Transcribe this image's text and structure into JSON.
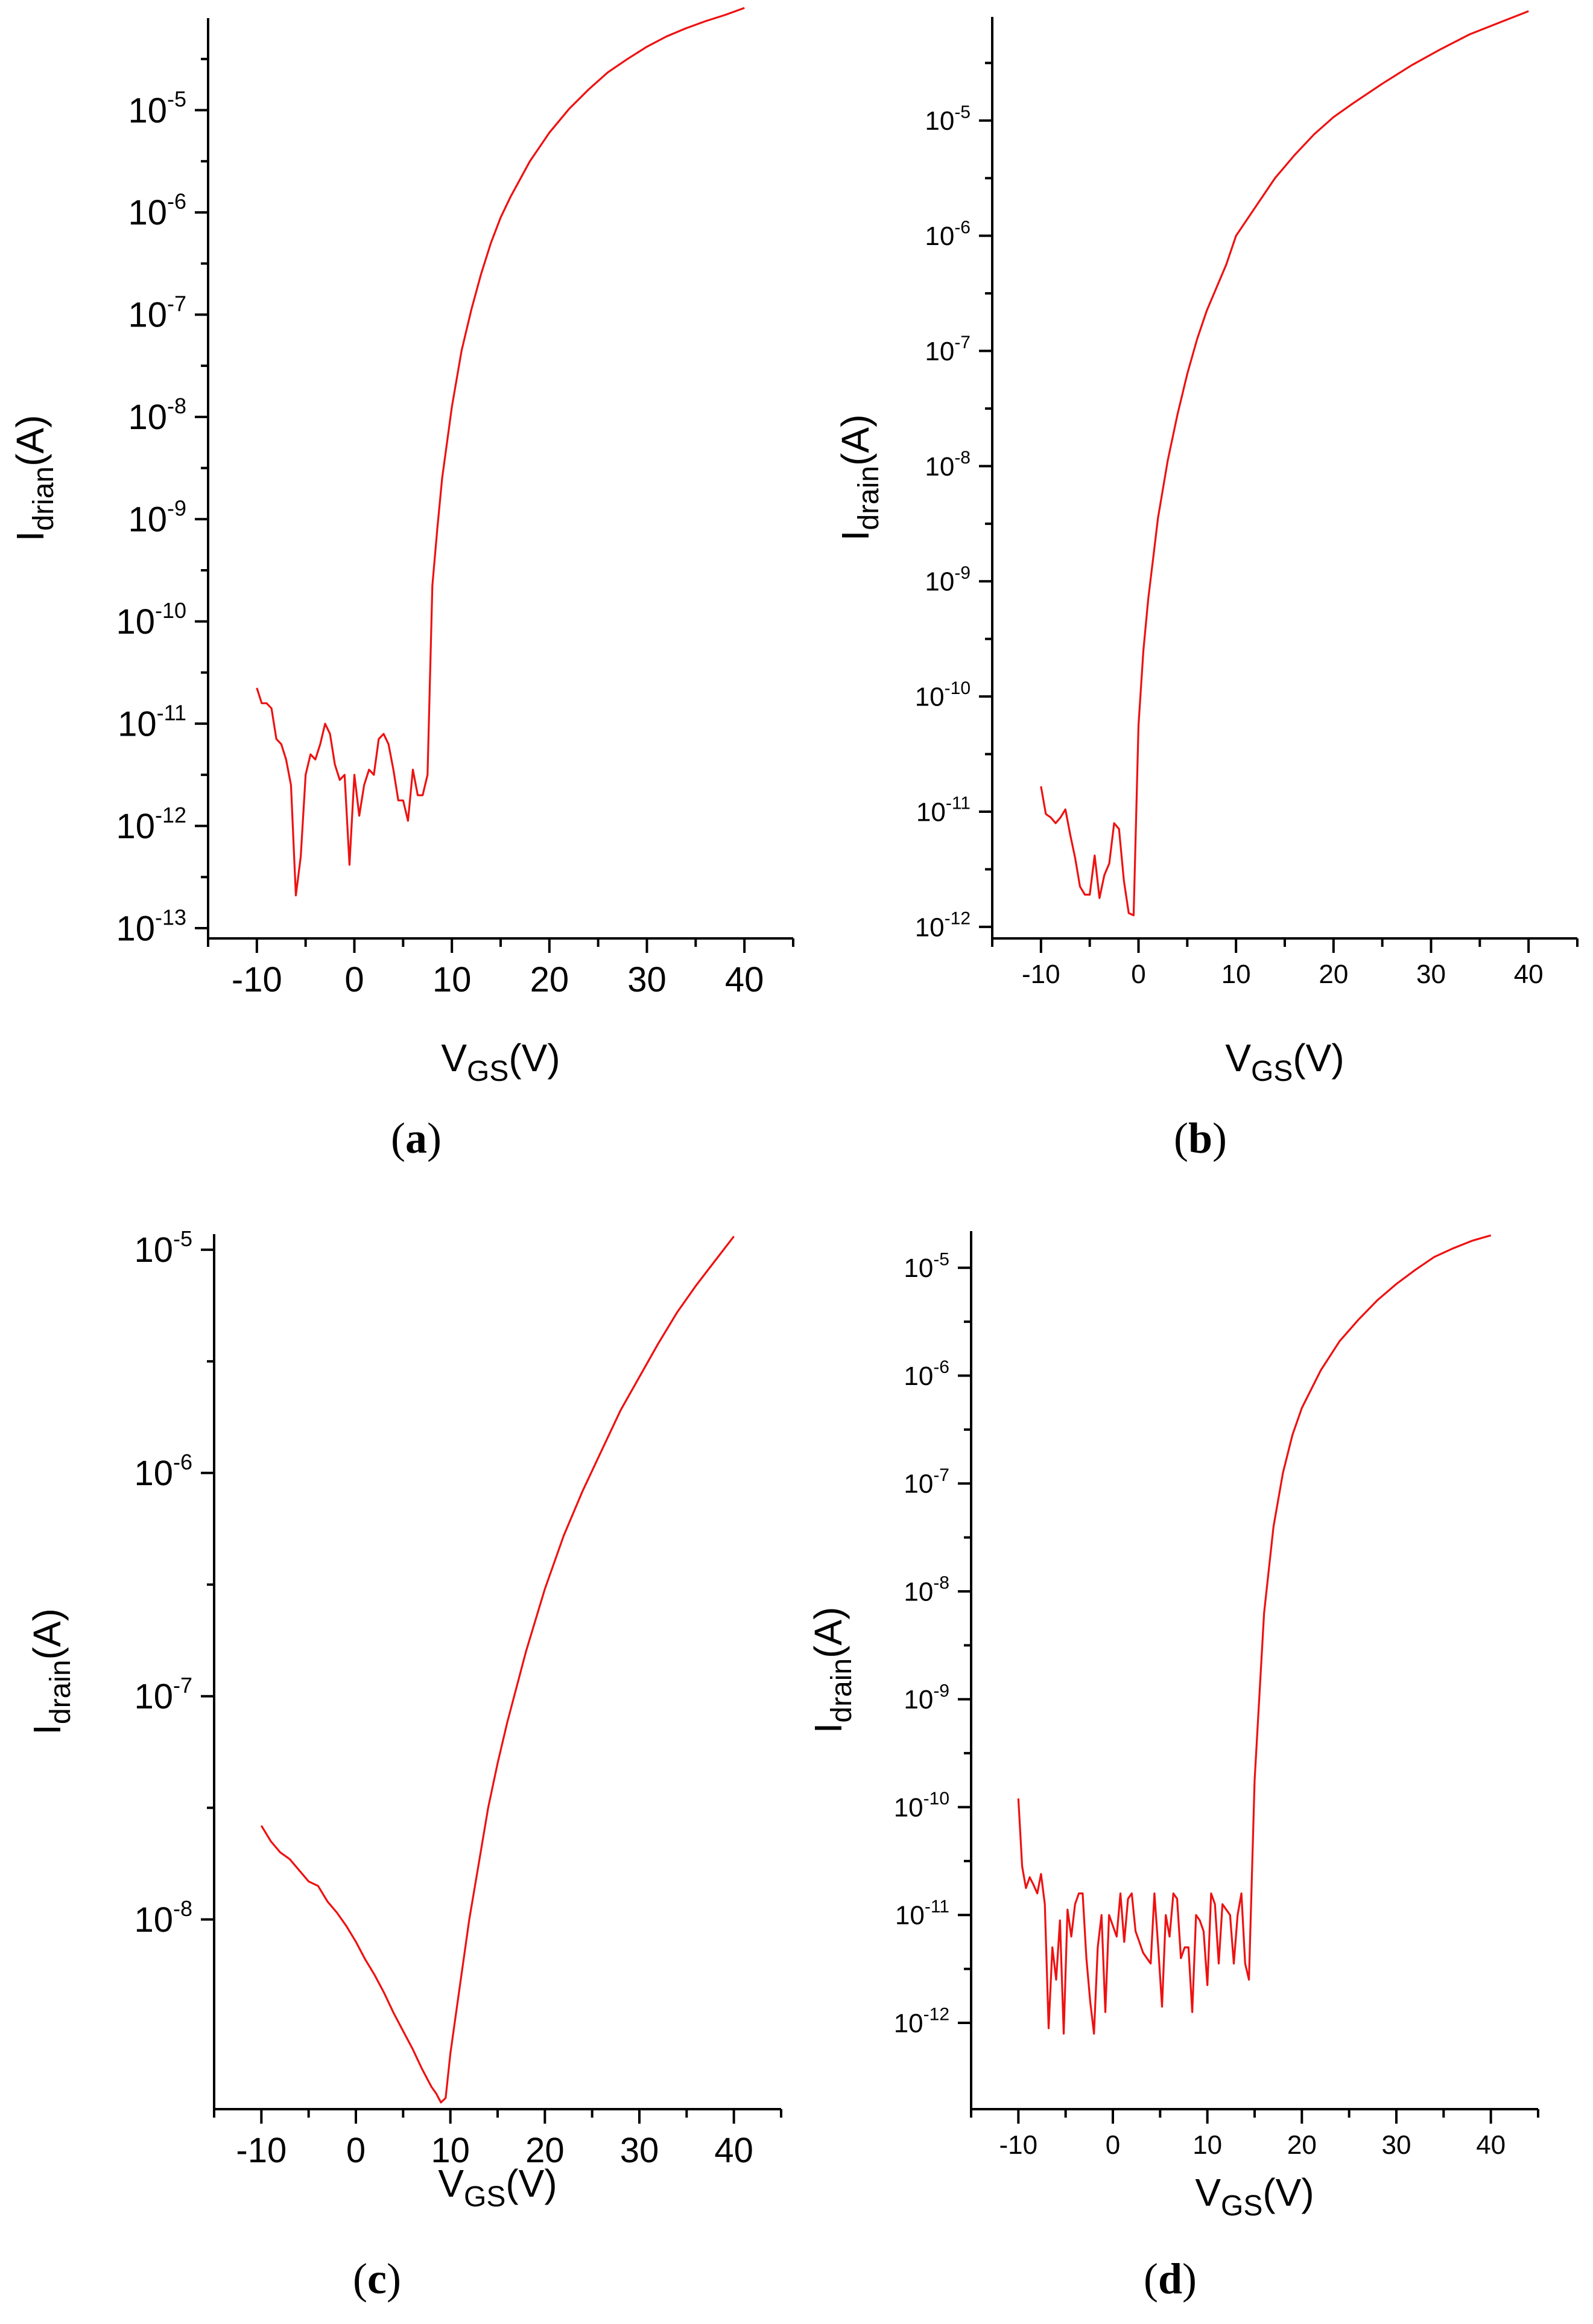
{
  "chart_data": [
    {
      "type": "line",
      "panel": "a",
      "panel_label": "a",
      "xlabel_main": "V",
      "xlabel_sub": "GS",
      "xlabel_tail": "(V)",
      "ylabel_main": "I",
      "ylabel_sub": "drian",
      "ylabel_tail": "(A)",
      "yscale": "log",
      "xlim": [
        -15,
        45
      ],
      "ylim_exp": [
        -13.1,
        -4.1
      ],
      "xticks": [
        -10,
        0,
        10,
        20,
        30,
        40
      ],
      "xtick_labels": [
        "-10",
        "0",
        "10",
        "20",
        "30",
        "40"
      ],
      "ytick_exps": [
        -13,
        -12,
        -11,
        -10,
        -9,
        -8,
        -7,
        -6,
        -5
      ],
      "ytick_base": "10",
      "ytick_exp_labels": [
        "-13",
        "-12",
        "-11",
        "-10",
        "-9",
        "-8",
        "-7",
        "-6",
        "-5"
      ],
      "series": [
        {
          "name": "I_drian",
          "color": "#ee1111",
          "x": [
            -10,
            -9.5,
            -9,
            -8.5,
            -8,
            -7.5,
            -7,
            -6.5,
            -6,
            -5.5,
            -5,
            -4.5,
            -4,
            -3.5,
            -3,
            -2.5,
            -2,
            -1.5,
            -1,
            -0.5,
            0,
            0.5,
            1,
            1.5,
            2,
            2.5,
            3,
            3.5,
            4,
            4.5,
            5,
            5.5,
            6,
            6.5,
            7,
            7.5,
            8,
            8.5,
            9,
            10,
            11,
            12,
            13,
            14,
            15,
            16,
            18,
            20,
            22,
            24,
            26,
            28,
            30,
            32,
            34,
            36,
            38,
            40
          ],
          "y_log10": [
            -10.65,
            -10.8,
            -10.8,
            -10.85,
            -11.15,
            -11.2,
            -11.35,
            -11.6,
            -12.68,
            -12.3,
            -11.5,
            -11.3,
            -11.35,
            -11.2,
            -11.0,
            -11.1,
            -11.4,
            -11.55,
            -11.5,
            -12.38,
            -11.5,
            -11.9,
            -11.6,
            -11.45,
            -11.5,
            -11.15,
            -11.1,
            -11.2,
            -11.45,
            -11.75,
            -11.75,
            -11.95,
            -11.45,
            -11.7,
            -11.7,
            -11.5,
            -9.65,
            -9.1,
            -8.6,
            -7.9,
            -7.35,
            -6.95,
            -6.6,
            -6.3,
            -6.05,
            -5.85,
            -5.5,
            -5.22,
            -4.99,
            -4.8,
            -4.63,
            -4.5,
            -4.38,
            -4.28,
            -4.2,
            -4.13,
            -4.07,
            -4.0
          ]
        }
      ]
    },
    {
      "type": "line",
      "panel": "b",
      "panel_label": "b",
      "xlabel_main": "V",
      "xlabel_sub": "GS",
      "xlabel_tail": "(V)",
      "ylabel_main": "I",
      "ylabel_sub": "drain",
      "ylabel_tail": "(A)",
      "yscale": "log",
      "xlim": [
        -15,
        45
      ],
      "ylim_exp": [
        -12.1,
        -4.1
      ],
      "xticks": [
        -10,
        0,
        10,
        20,
        30,
        40
      ],
      "xtick_labels": [
        "-10",
        "0",
        "10",
        "20",
        "30",
        "40"
      ],
      "ytick_exps": [
        -12,
        -11,
        -10,
        -9,
        -8,
        -7,
        -6,
        -5
      ],
      "ytick_base": "10",
      "ytick_exp_labels": [
        "-12",
        "-11",
        "-10",
        "-9",
        "-8",
        "-7",
        "-6",
        "-5"
      ],
      "series": [
        {
          "name": "I_drain",
          "color": "#ee1111",
          "x": [
            -10,
            -9.5,
            -9,
            -8.5,
            -8,
            -7.5,
            -7,
            -6.5,
            -6,
            -5.5,
            -5,
            -4.5,
            -4,
            -3.5,
            -3,
            -2.5,
            -2,
            -1.5,
            -1,
            -0.5,
            0,
            0.5,
            1,
            1.5,
            2,
            2.5,
            3,
            4,
            5,
            6,
            7,
            8,
            9,
            10,
            12,
            14,
            16,
            18,
            20,
            22,
            25,
            28,
            31,
            34,
            37,
            40
          ],
          "y_log10": [
            -10.78,
            -11.02,
            -11.05,
            -11.1,
            -11.05,
            -10.98,
            -11.2,
            -11.4,
            -11.65,
            -11.72,
            -11.72,
            -11.38,
            -11.75,
            -11.55,
            -11.45,
            -11.1,
            -11.15,
            -11.6,
            -11.88,
            -11.9,
            -10.25,
            -9.6,
            -9.15,
            -8.8,
            -8.45,
            -8.2,
            -7.95,
            -7.55,
            -7.2,
            -6.9,
            -6.65,
            -6.45,
            -6.25,
            -6.0,
            -5.75,
            -5.5,
            -5.3,
            -5.12,
            -4.97,
            -4.85,
            -4.68,
            -4.52,
            -4.38,
            -4.25,
            -4.15,
            -4.05
          ]
        }
      ]
    },
    {
      "type": "line",
      "panel": "c",
      "panel_label": "c",
      "xlabel_main": "V",
      "xlabel_sub": "GS",
      "xlabel_tail": "(V)",
      "ylabel_main": "I",
      "ylabel_sub": "drain",
      "ylabel_tail": "(A)",
      "yscale": "log",
      "xlim": [
        -15,
        45
      ],
      "ylim_exp": [
        -8.85,
        -4.93
      ],
      "xticks": [
        -10,
        0,
        10,
        20,
        30,
        40
      ],
      "xtick_labels": [
        "-10",
        "0",
        "10",
        "20",
        "30",
        "40"
      ],
      "ytick_exps": [
        -8,
        -7,
        -6,
        -5
      ],
      "ytick_base": "10",
      "ytick_exp_labels": [
        "-8",
        "-7",
        "-6",
        "-5"
      ],
      "series": [
        {
          "name": "I_drain",
          "color": "#ee1111",
          "x": [
            -10,
            -9,
            -8,
            -7,
            -6,
            -5,
            -4,
            -3,
            -2,
            -1,
            0,
            1,
            2,
            3,
            4,
            5,
            6,
            7,
            8,
            8.5,
            9,
            9.5,
            10,
            11,
            12,
            13,
            14,
            15,
            16,
            18,
            20,
            22,
            24,
            26,
            28,
            30,
            32,
            34,
            36,
            38,
            40
          ],
          "y_log10": [
            -7.58,
            -7.65,
            -7.7,
            -7.73,
            -7.78,
            -7.83,
            -7.85,
            -7.92,
            -7.97,
            -8.03,
            -8.1,
            -8.18,
            -8.25,
            -8.33,
            -8.42,
            -8.5,
            -8.58,
            -8.67,
            -8.75,
            -8.78,
            -8.82,
            -8.8,
            -8.6,
            -8.3,
            -8.0,
            -7.75,
            -7.5,
            -7.3,
            -7.12,
            -6.8,
            -6.52,
            -6.28,
            -6.08,
            -5.9,
            -5.72,
            -5.57,
            -5.42,
            -5.28,
            -5.16,
            -5.05,
            -4.94
          ]
        }
      ]
    },
    {
      "type": "line",
      "panel": "d",
      "panel_label": "d",
      "xlabel_main": "V",
      "xlabel_sub": "GS",
      "xlabel_tail": "(V)",
      "ylabel_main": "I",
      "ylabel_sub": "drain",
      "ylabel_tail": "(A)",
      "yscale": "log",
      "xlim": [
        -15,
        45
      ],
      "ylim_exp": [
        -12.8,
        -4.66
      ],
      "xticks": [
        -10,
        0,
        10,
        20,
        30,
        40
      ],
      "xtick_labels": [
        "-10",
        "0",
        "10",
        "20",
        "30",
        "40"
      ],
      "ytick_exps": [
        -12,
        -11,
        -10,
        -9,
        -8,
        -7,
        -6,
        -5
      ],
      "ytick_base": "10",
      "ytick_exp_labels": [
        "-12",
        "-11",
        "-10",
        "-9",
        "-8",
        "-7",
        "-6",
        "-5"
      ],
      "series": [
        {
          "name": "I_drain",
          "color": "#ee1111",
          "x": [
            -10,
            -9.6,
            -9.2,
            -8.8,
            -8.4,
            -8.0,
            -7.6,
            -7.2,
            -6.8,
            -6.4,
            -6.0,
            -5.6,
            -5.2,
            -4.8,
            -4.4,
            -4.0,
            -3.6,
            -3.2,
            -2.8,
            -2.4,
            -2.0,
            -1.6,
            -1.2,
            -0.8,
            -0.4,
            0.0,
            0.4,
            0.8,
            1.2,
            1.6,
            2.0,
            2.4,
            2.8,
            3.2,
            3.6,
            4.0,
            4.4,
            4.8,
            5.2,
            5.6,
            6.0,
            6.4,
            6.8,
            7.2,
            7.6,
            8.0,
            8.4,
            8.8,
            9.2,
            9.6,
            10.0,
            10.4,
            10.8,
            11.2,
            11.6,
            12.0,
            12.4,
            12.8,
            13.2,
            13.6,
            14.0,
            14.4,
            15,
            16,
            17,
            18,
            19,
            20,
            22,
            24,
            26,
            28,
            30,
            32,
            34,
            36,
            38,
            40
          ],
          "y_log10": [
            -9.92,
            -10.55,
            -10.75,
            -10.65,
            -10.72,
            -10.8,
            -10.62,
            -10.9,
            -12.05,
            -11.3,
            -11.6,
            -11.05,
            -12.1,
            -10.95,
            -11.2,
            -10.9,
            -10.8,
            -10.8,
            -11.4,
            -11.8,
            -12.1,
            -11.3,
            -11.0,
            -11.9,
            -11.0,
            -11.1,
            -11.2,
            -10.8,
            -11.25,
            -10.85,
            -10.8,
            -11.15,
            -11.25,
            -11.35,
            -11.4,
            -11.45,
            -10.8,
            -11.3,
            -11.85,
            -11.0,
            -11.2,
            -10.8,
            -10.85,
            -11.4,
            -11.3,
            -11.3,
            -11.9,
            -11.0,
            -11.05,
            -11.15,
            -11.65,
            -10.8,
            -10.9,
            -11.45,
            -10.9,
            -10.95,
            -11.0,
            -11.45,
            -11.0,
            -10.8,
            -11.45,
            -11.6,
            -9.75,
            -8.2,
            -7.4,
            -6.9,
            -6.55,
            -6.3,
            -5.95,
            -5.68,
            -5.48,
            -5.3,
            -5.15,
            -5.02,
            -4.9,
            -4.82,
            -4.75,
            -4.7
          ]
        }
      ]
    }
  ]
}
